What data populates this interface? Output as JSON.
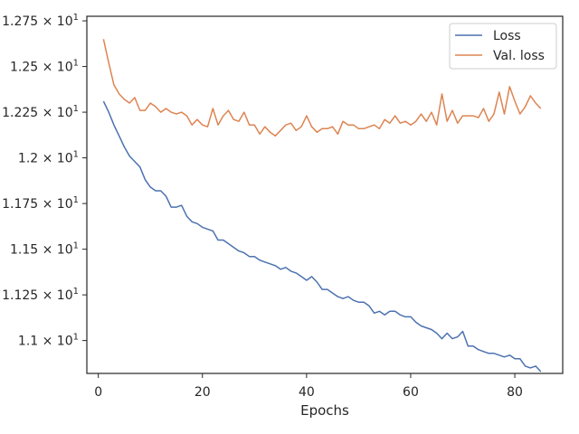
{
  "chart_data": {
    "type": "line",
    "xlabel": "Epochs",
    "ylabel": "",
    "xlim": [
      -2.2,
      89.2
    ],
    "ylim": [
      10.82,
      12.775
    ],
    "x_ticks": [
      {
        "value": 0,
        "label": "0"
      },
      {
        "value": 20,
        "label": "20"
      },
      {
        "value": 40,
        "label": "40"
      },
      {
        "value": 60,
        "label": "60"
      },
      {
        "value": 80,
        "label": "80"
      }
    ],
    "y_ticks": [
      {
        "value": 11.0,
        "mantissa": "1.1",
        "exponent": "1"
      },
      {
        "value": 11.25,
        "mantissa": "1.125",
        "exponent": "1"
      },
      {
        "value": 11.5,
        "mantissa": "1.15",
        "exponent": "1"
      },
      {
        "value": 11.75,
        "mantissa": "1.175",
        "exponent": "1"
      },
      {
        "value": 12.0,
        "mantissa": "1.2",
        "exponent": "1"
      },
      {
        "value": 12.25,
        "mantissa": "1.225",
        "exponent": "1"
      },
      {
        "value": 12.5,
        "mantissa": "1.25",
        "exponent": "1"
      },
      {
        "value": 12.75,
        "mantissa": "1.275",
        "exponent": "1"
      }
    ],
    "times_sign": "×",
    "base": "10",
    "legend_position": "upper right",
    "grid": false,
    "series": [
      {
        "name": "Loss",
        "color": "#4c72b0",
        "x": [
          1,
          2,
          3,
          4,
          5,
          6,
          7,
          8,
          9,
          10,
          11,
          12,
          13,
          14,
          15,
          16,
          17,
          18,
          19,
          20,
          21,
          22,
          23,
          24,
          25,
          26,
          27,
          28,
          29,
          30,
          31,
          32,
          33,
          34,
          35,
          36,
          37,
          38,
          39,
          40,
          41,
          42,
          43,
          44,
          45,
          46,
          47,
          48,
          49,
          50,
          51,
          52,
          53,
          54,
          55,
          56,
          57,
          58,
          59,
          60,
          61,
          62,
          63,
          64,
          65,
          66,
          67,
          68,
          69,
          70,
          71,
          72,
          73,
          74,
          75,
          76,
          77,
          78,
          79,
          80,
          81,
          82,
          83,
          84,
          85
        ],
        "y": [
          12.31,
          12.25,
          12.18,
          12.12,
          12.06,
          12.01,
          11.98,
          11.95,
          11.88,
          11.84,
          11.82,
          11.82,
          11.79,
          11.73,
          11.73,
          11.74,
          11.68,
          11.65,
          11.64,
          11.62,
          11.61,
          11.6,
          11.55,
          11.55,
          11.53,
          11.51,
          11.49,
          11.48,
          11.46,
          11.46,
          11.44,
          11.43,
          11.42,
          11.41,
          11.39,
          11.4,
          11.38,
          11.37,
          11.35,
          11.33,
          11.35,
          11.32,
          11.28,
          11.28,
          11.26,
          11.24,
          11.23,
          11.24,
          11.22,
          11.21,
          11.21,
          11.19,
          11.15,
          11.16,
          11.14,
          11.16,
          11.16,
          11.14,
          11.13,
          11.13,
          11.1,
          11.08,
          11.07,
          11.06,
          11.04,
          11.01,
          11.04,
          11.01,
          11.02,
          11.05,
          10.97,
          10.97,
          10.95,
          10.94,
          10.93,
          10.93,
          10.92,
          10.91,
          10.92,
          10.9,
          10.9,
          10.86,
          10.85,
          10.86,
          10.83
        ]
      },
      {
        "name": "Val. loss",
        "color": "#dd8452",
        "x": [
          1,
          2,
          3,
          4,
          5,
          6,
          7,
          8,
          9,
          10,
          11,
          12,
          13,
          14,
          15,
          16,
          17,
          18,
          19,
          20,
          21,
          22,
          23,
          24,
          25,
          26,
          27,
          28,
          29,
          30,
          31,
          32,
          33,
          34,
          35,
          36,
          37,
          38,
          39,
          40,
          41,
          42,
          43,
          44,
          45,
          46,
          47,
          48,
          49,
          50,
          51,
          52,
          53,
          54,
          55,
          56,
          57,
          58,
          59,
          60,
          61,
          62,
          63,
          64,
          65,
          66,
          67,
          68,
          69,
          70,
          71,
          72,
          73,
          74,
          75,
          76,
          77,
          78,
          79,
          80,
          81,
          82,
          83,
          84,
          85
        ],
        "y": [
          12.65,
          12.52,
          12.4,
          12.35,
          12.32,
          12.3,
          12.33,
          12.26,
          12.26,
          12.3,
          12.28,
          12.25,
          12.27,
          12.25,
          12.24,
          12.25,
          12.23,
          12.18,
          12.21,
          12.18,
          12.17,
          12.27,
          12.18,
          12.23,
          12.26,
          12.21,
          12.2,
          12.25,
          12.18,
          12.18,
          12.13,
          12.17,
          12.14,
          12.12,
          12.15,
          12.18,
          12.19,
          12.15,
          12.17,
          12.23,
          12.17,
          12.14,
          12.16,
          12.16,
          12.17,
          12.13,
          12.2,
          12.18,
          12.18,
          12.16,
          12.16,
          12.17,
          12.18,
          12.16,
          12.21,
          12.19,
          12.23,
          12.19,
          12.2,
          12.18,
          12.2,
          12.24,
          12.2,
          12.25,
          12.18,
          12.35,
          12.2,
          12.26,
          12.19,
          12.23,
          12.23,
          12.23,
          12.22,
          12.27,
          12.2,
          12.24,
          12.36,
          12.24,
          12.39,
          12.31,
          12.24,
          12.28,
          12.34,
          12.3,
          12.27
        ]
      }
    ]
  }
}
